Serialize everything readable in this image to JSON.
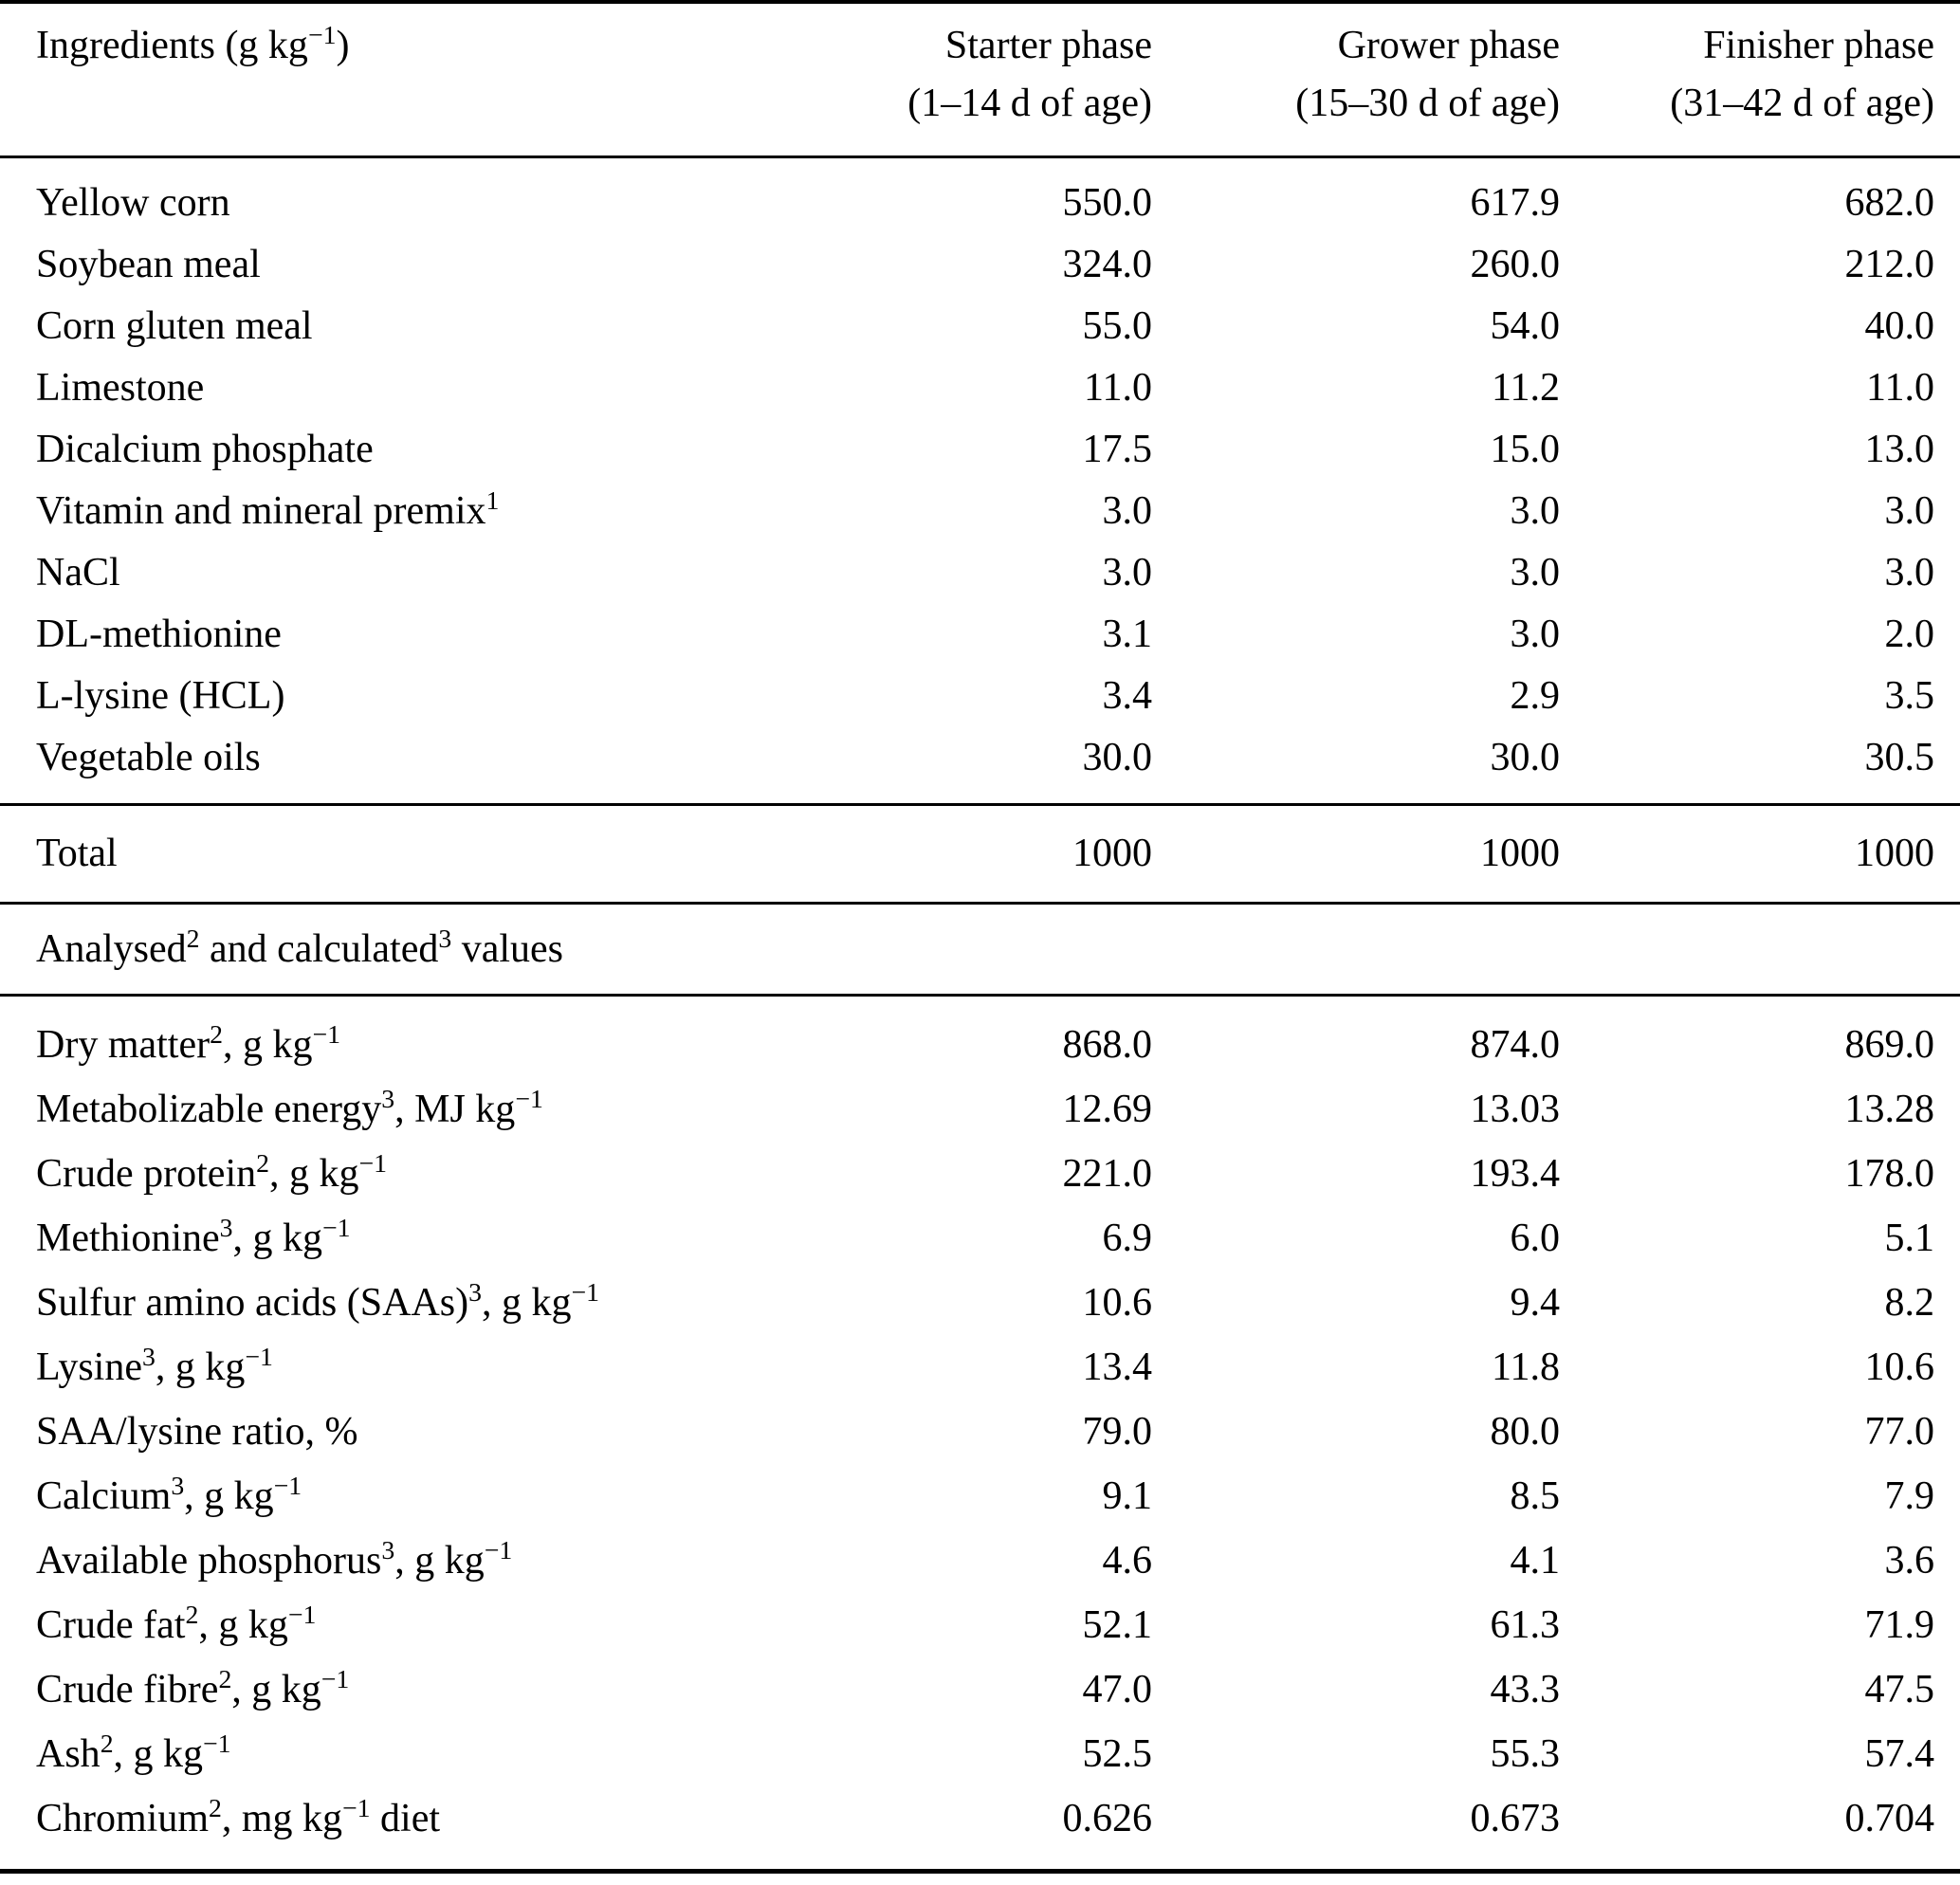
{
  "page": {
    "background_color": "#ffffff",
    "text_color": "#000000"
  },
  "table": {
    "header": {
      "ingredients_label": "Ingredients (g kg^−1^)",
      "phases": [
        {
          "name": "Starter phase",
          "age_range": "(1–14 d of age)"
        },
        {
          "name": "Grower phase",
          "age_range": "(15–30 d of age)"
        },
        {
          "name": "Finisher phase",
          "age_range": "(31–42 d of age)"
        }
      ]
    },
    "ingredients": [
      {
        "label": "Yellow corn",
        "values": [
          "550.0",
          "617.9",
          "682.0"
        ]
      },
      {
        "label": "Soybean meal",
        "values": [
          "324.0",
          "260.0",
          "212.0"
        ]
      },
      {
        "label": "Corn gluten meal",
        "values": [
          "55.0",
          "54.0",
          "40.0"
        ]
      },
      {
        "label": "Limestone",
        "values": [
          "11.0",
          "11.2",
          "11.0"
        ]
      },
      {
        "label": "Dicalcium phosphate",
        "values": [
          "17.5",
          "15.0",
          "13.0"
        ]
      },
      {
        "label": "Vitamin and mineral premix^1^",
        "values": [
          "3.0",
          "3.0",
          "3.0"
        ]
      },
      {
        "label": "NaCl",
        "values": [
          "3.0",
          "3.0",
          "3.0"
        ]
      },
      {
        "label": "DL-methionine",
        "values": [
          "3.1",
          "3.0",
          "2.0"
        ]
      },
      {
        "label": "L-lysine (HCL)",
        "values": [
          "3.4",
          "2.9",
          "3.5"
        ]
      },
      {
        "label": "Vegetable oils",
        "values": [
          "30.0",
          "30.0",
          "30.5"
        ]
      }
    ],
    "total": {
      "label": "Total",
      "values": [
        "1000",
        "1000",
        "1000"
      ]
    },
    "section_header": "Analysed^2^ and calculated^3^ values",
    "analysed_values": [
      {
        "label": "Dry matter^2^, g kg^−1^",
        "values": [
          "868.0",
          "874.0",
          "869.0"
        ]
      },
      {
        "label": "Metabolizable energy^3^, MJ kg^−1^",
        "values": [
          "12.69",
          "13.03",
          "13.28"
        ]
      },
      {
        "label": "Crude protein^2^, g kg^−1^",
        "values": [
          "221.0",
          "193.4",
          "178.0"
        ]
      },
      {
        "label": "Methionine^3^, g kg^−1^",
        "values": [
          "6.9",
          "6.0",
          "5.1"
        ]
      },
      {
        "label": "Sulfur amino acids (SAAs)^3^, g kg^−1^",
        "values": [
          "10.6",
          "9.4",
          "8.2"
        ]
      },
      {
        "label": "Lysine^3^, g kg^−1^",
        "values": [
          "13.4",
          "11.8",
          "10.6"
        ]
      },
      {
        "label": "SAA/lysine ratio, %",
        "values": [
          "79.0",
          "80.0",
          "77.0"
        ]
      },
      {
        "label": "Calcium^3^, g kg^−1^",
        "values": [
          "9.1",
          "8.5",
          "7.9"
        ]
      },
      {
        "label": "Available phosphorus^3^, g kg^−1^",
        "values": [
          "4.6",
          "4.1",
          "3.6"
        ]
      },
      {
        "label": "Crude fat^2^, g kg^−1^",
        "values": [
          "52.1",
          "61.3",
          "71.9"
        ]
      },
      {
        "label": "Crude fibre^2^, g kg^−1^",
        "values": [
          "47.0",
          "43.3",
          "47.5"
        ]
      },
      {
        "label": "Ash^2^, g kg^−1^",
        "values": [
          "52.5",
          "55.3",
          "57.4"
        ]
      },
      {
        "label": "Chromium^2^, mg kg^−1^ diet",
        "values": [
          "0.626",
          "0.673",
          "0.704"
        ]
      }
    ]
  }
}
